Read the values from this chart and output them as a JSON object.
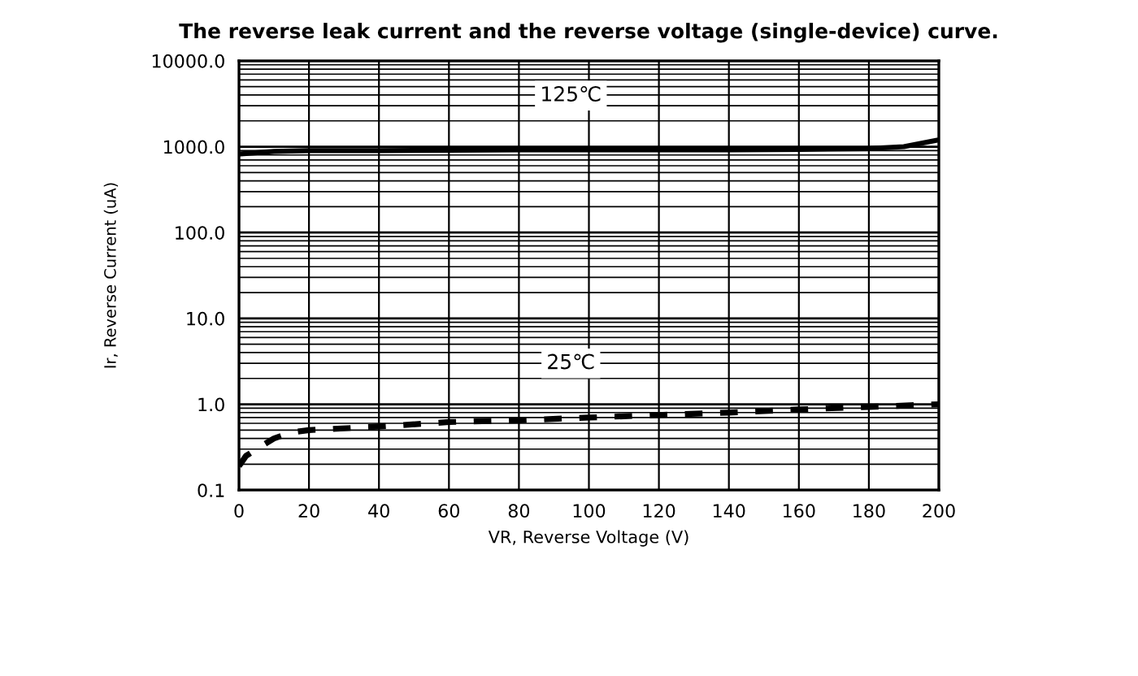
{
  "chart_data": {
    "type": "line",
    "title": "The reverse leak current and the reverse voltage (single-device) curve.",
    "xlabel": "VR, Reverse Voltage (V)",
    "ylabel": "Ir, Reverse Current (uA)",
    "log": "y",
    "grid": true,
    "legend": false,
    "marker": "none",
    "xlim": [
      0,
      200
    ],
    "xticks": [
      0,
      20,
      40,
      60,
      80,
      100,
      120,
      140,
      160,
      180,
      200
    ],
    "ylim": [
      0.1,
      10000
    ],
    "yticks": [
      {
        "value": 0.1,
        "label": "0.1"
      },
      {
        "value": 1,
        "label": "1.0"
      },
      {
        "value": 10,
        "label": "10.0"
      },
      {
        "value": 100,
        "label": "100.0"
      },
      {
        "value": 1000,
        "label": "1000.0"
      },
      {
        "value": 10000,
        "label": "10000.0"
      }
    ],
    "series": [
      {
        "name": "125℃",
        "color": "#000000",
        "line_style": "solid",
        "x": [
          0,
          10,
          20,
          40,
          60,
          80,
          100,
          120,
          140,
          160,
          180,
          190,
          200
        ],
        "values": [
          820,
          880,
          900,
          900,
          910,
          920,
          920,
          920,
          920,
          930,
          950,
          1000,
          1200
        ]
      },
      {
        "name": "25℃",
        "color": "#000000",
        "line_style": "dashed",
        "x": [
          0,
          2,
          5,
          10,
          15,
          20,
          40,
          60,
          80,
          100,
          120,
          140,
          160,
          180,
          200
        ],
        "values": [
          0.19,
          0.25,
          0.3,
          0.4,
          0.47,
          0.5,
          0.55,
          0.62,
          0.65,
          0.7,
          0.75,
          0.8,
          0.87,
          0.93,
          1.0
        ]
      }
    ]
  }
}
